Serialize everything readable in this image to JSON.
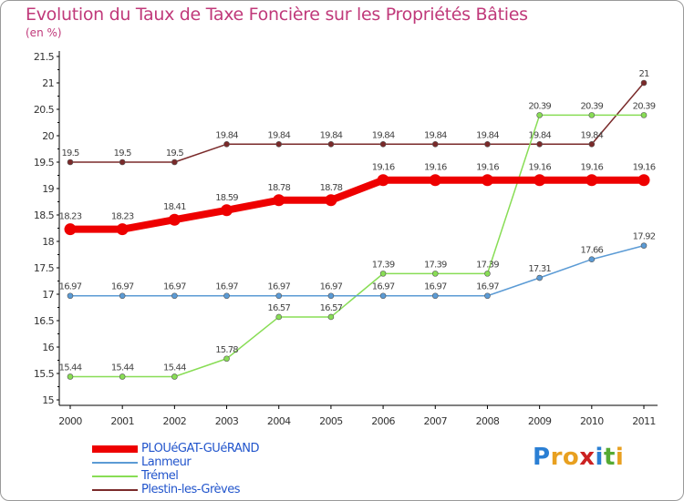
{
  "chart_data": {
    "type": "line",
    "title": "Evolution du Taux de Taxe Foncière sur les Propriétés Bâties",
    "subtitle": "(en %)",
    "categories": [
      "2000",
      "2001",
      "2002",
      "2003",
      "2004",
      "2005",
      "2006",
      "2007",
      "2008",
      "2009",
      "2010",
      "2011"
    ],
    "ylim": [
      15,
      21.5
    ],
    "yticks": [
      "15",
      "15.5",
      "16",
      "16.5",
      "17",
      "17.5",
      "18",
      "18.5",
      "19",
      "19.5",
      "20",
      "20.5",
      "21",
      "21.5"
    ],
    "grid": false,
    "legend_position": "bottom-left",
    "series": [
      {
        "name": "Plestin-les-Grèves",
        "color": "#7a2a2a",
        "values": [
          19.5,
          19.5,
          19.5,
          19.84,
          19.84,
          19.84,
          19.84,
          19.84,
          19.84,
          19.84,
          19.84,
          21
        ],
        "labels": [
          "19.5",
          "19.5",
          "19.5",
          "19.84",
          "19.84",
          "19.84",
          "19.84",
          "19.84",
          "19.84",
          "19.84",
          "19.84",
          "21"
        ]
      },
      {
        "name": "Trémel",
        "color": "#88dd55",
        "values": [
          15.44,
          15.44,
          15.44,
          15.78,
          16.57,
          16.57,
          17.39,
          17.39,
          17.39,
          20.39,
          20.39,
          20.39
        ],
        "labels": [
          "15.44",
          "15.44",
          "15.44",
          "15.78",
          "16.57",
          "16.57",
          "17.39",
          "17.39",
          "17.39",
          "20.39",
          "20.39",
          "20.39"
        ]
      },
      {
        "name": "Lanmeur",
        "color": "#5b9bd5",
        "values": [
          16.97,
          16.97,
          16.97,
          16.97,
          16.97,
          16.97,
          16.97,
          16.97,
          16.97,
          17.31,
          17.66,
          17.92
        ],
        "labels": [
          "16.97",
          "16.97",
          "16.97",
          "16.97",
          "16.97",
          "16.97",
          "16.97",
          "16.97",
          "16.97",
          "17.31",
          "17.66",
          "17.92"
        ]
      },
      {
        "name": "PLOUéGAT-GUéRAND",
        "color": "#ee0000",
        "values": [
          18.23,
          18.23,
          18.41,
          18.59,
          18.78,
          18.78,
          19.16,
          19.16,
          19.16,
          19.16,
          19.16,
          19.16
        ],
        "labels": [
          "18.23",
          "18.23",
          "18.41",
          "18.59",
          "18.78",
          "18.78",
          "19.16",
          "19.16",
          "19.16",
          "19.16",
          "19.16",
          "19.16"
        ]
      }
    ],
    "legend": [
      "PLOUéGAT-GUéRAND",
      "Lanmeur",
      "Trémel",
      "Plestin-les-Grèves"
    ]
  },
  "logo": {
    "letters": [
      "P",
      "r",
      "o",
      "x",
      "i",
      "t",
      "i"
    ],
    "colors": [
      "#2a7fd4",
      "#e8a020",
      "#e8a020",
      "#cc2222",
      "#2a7fd4",
      "#55aa33",
      "#e8a020"
    ]
  }
}
